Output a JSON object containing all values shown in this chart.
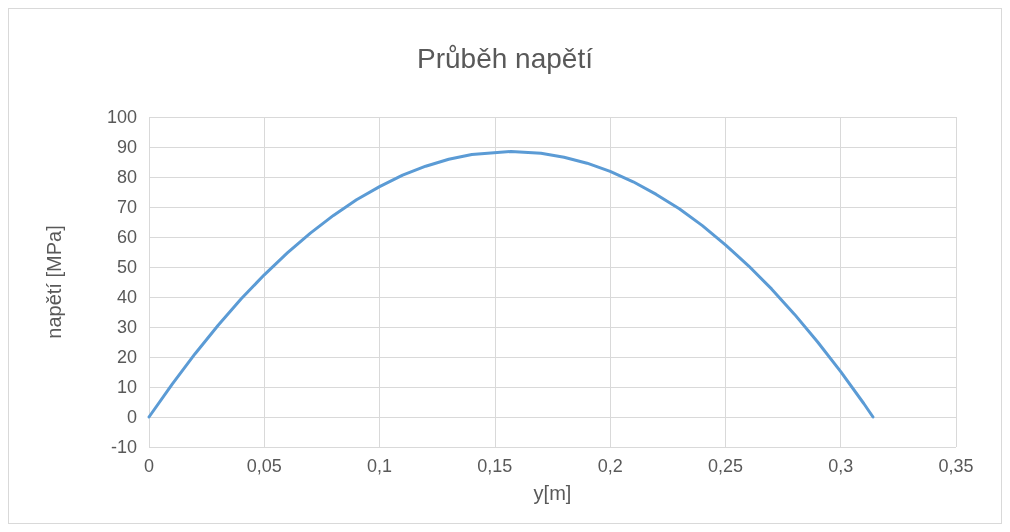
{
  "chart_data": {
    "type": "line",
    "title": "Průběh napětí",
    "xlabel": "y[m]",
    "ylabel": "napětí [MPa]",
    "x": [
      0,
      0.01,
      0.02,
      0.03,
      0.04,
      0.05,
      0.06,
      0.07,
      0.08,
      0.09,
      0.1,
      0.11,
      0.12,
      0.13,
      0.14,
      0.157,
      0.17,
      0.18,
      0.19,
      0.2,
      0.21,
      0.22,
      0.23,
      0.24,
      0.25,
      0.26,
      0.27,
      0.28,
      0.29,
      0.3,
      0.31,
      0.314
    ],
    "series": [
      {
        "color": "#5b9bd5",
        "values": [
          0,
          10.9,
          21.1,
          30.6,
          39.4,
          47.4,
          54.7,
          61.3,
          67.2,
          72.4,
          76.8,
          80.6,
          83.6,
          85.9,
          87.5,
          88.5,
          87.9,
          86.6,
          84.6,
          81.9,
          78.4,
          74.2,
          69.4,
          63.8,
          57.4,
          50.4,
          42.7,
          34.2,
          25.0,
          15.1,
          4.5,
          0
        ]
      }
    ],
    "xlim": [
      0,
      0.35
    ],
    "xticks": [
      0,
      {
        "value": 0.05,
        "label": "0,05"
      },
      {
        "value": 0.1,
        "label": "0,1"
      },
      {
        "value": 0.15,
        "label": "0,15"
      },
      {
        "value": 0.2,
        "label": "0,2"
      },
      {
        "value": 0.25,
        "label": "0,25"
      },
      {
        "value": 0.3,
        "label": "0,3"
      },
      {
        "value": 0.35,
        "label": "0,35"
      }
    ],
    "ylim": [
      -10,
      100
    ],
    "yticks": [
      -10,
      0,
      10,
      20,
      30,
      40,
      50,
      60,
      70,
      80,
      90,
      100
    ],
    "grid": true,
    "marker": "none",
    "line_style": "solid"
  }
}
